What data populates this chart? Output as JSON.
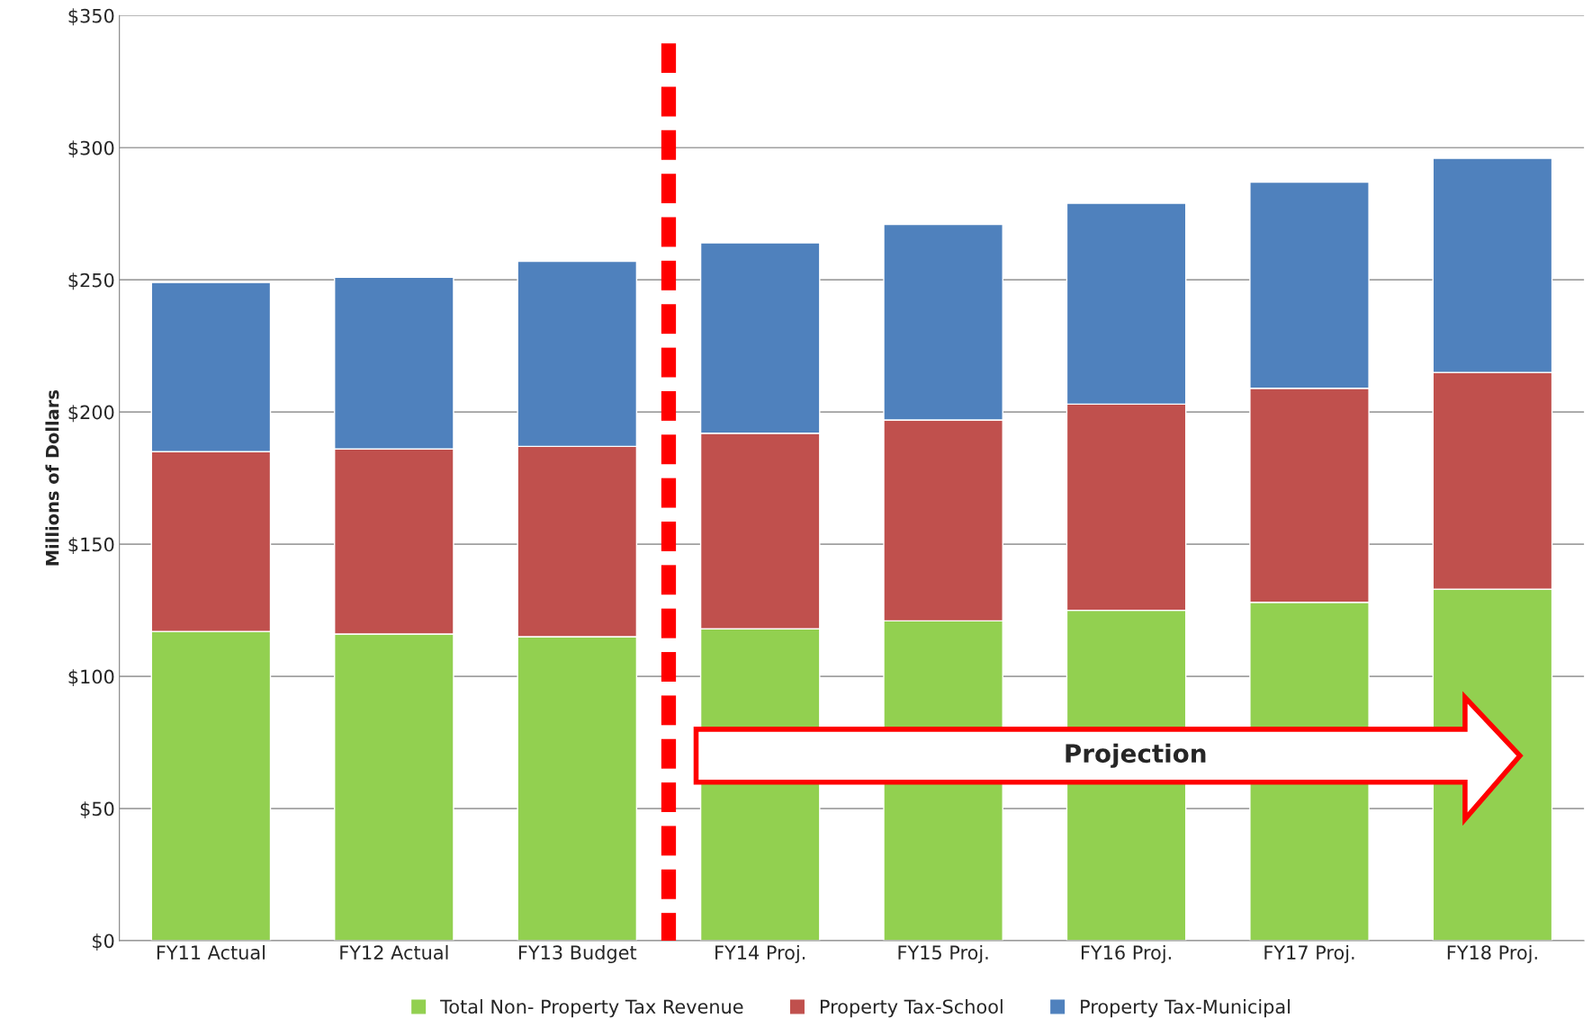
{
  "chart_data": {
    "type": "bar",
    "stacked": true,
    "ylabel": "Millions of Dollars",
    "categories": [
      "FY11 Actual",
      "FY12 Actual",
      "FY13 Budget",
      "FY14 Proj.",
      "FY15 Proj.",
      "FY16 Proj.",
      "FY17 Proj.",
      "FY18 Proj."
    ],
    "series": [
      {
        "name": "Total Non- Property Tax Revenue",
        "color": "#92d050",
        "values": [
          117,
          116,
          115,
          118,
          121,
          125,
          128,
          133
        ]
      },
      {
        "name": "Property Tax-School",
        "color": "#c0504d",
        "values": [
          68,
          70,
          72,
          74,
          76,
          78,
          81,
          82
        ]
      },
      {
        "name": "Property Tax-Municipal",
        "color": "#4f81bd",
        "values": [
          64,
          65,
          70,
          72,
          74,
          76,
          78,
          81
        ]
      }
    ],
    "ylim": [
      0,
      350
    ],
    "yticks": [
      {
        "value": 0,
        "label": "$0"
      },
      {
        "value": 50,
        "label": "$50"
      },
      {
        "value": 100,
        "label": "$100"
      },
      {
        "value": 150,
        "label": "$150"
      },
      {
        "value": 200,
        "label": "$200"
      },
      {
        "value": 250,
        "label": "$250"
      },
      {
        "value": 300,
        "label": "$300"
      },
      {
        "value": 350,
        "label": "$350"
      }
    ],
    "grid": "y",
    "legend": "bottom",
    "annotations": [
      "Projection"
    ]
  }
}
